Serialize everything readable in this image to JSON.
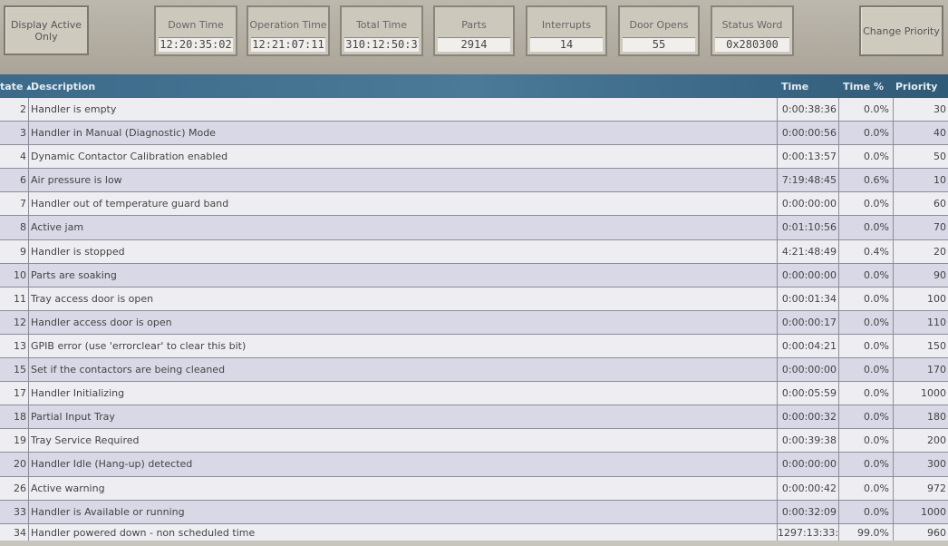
{
  "toolbar": {
    "display_active": "Display Active Only",
    "change_priority": "Change Priority"
  },
  "stats": [
    {
      "label": "Down Time",
      "value": "12:20:35:02"
    },
    {
      "label": "Operation Time",
      "value": "12:21:07:11"
    },
    {
      "label": "Total Time",
      "value": "310:12:50:3"
    },
    {
      "label": "Parts",
      "value": "2914"
    },
    {
      "label": "Interrupts",
      "value": "14"
    },
    {
      "label": "Door Opens",
      "value": "55"
    },
    {
      "label": "Status Word",
      "value": "0x280300"
    }
  ],
  "table": {
    "headers": {
      "state": "tate ▴",
      "description": "Description",
      "time": "Time",
      "time_pct": "Time %",
      "priority": "Priority"
    },
    "rows": [
      {
        "state": "2",
        "description": "Handler is empty",
        "time": "0:00:38:36",
        "pct": "0.0%",
        "priority": "30"
      },
      {
        "state": "3",
        "description": "Handler in Manual (Diagnostic) Mode",
        "time": "0:00:00:56",
        "pct": "0.0%",
        "priority": "40"
      },
      {
        "state": "4",
        "description": "Dynamic Contactor Calibration enabled",
        "time": "0:00:13:57",
        "pct": "0.0%",
        "priority": "50"
      },
      {
        "state": "6",
        "description": "Air pressure is low",
        "time": "7:19:48:45",
        "pct": "0.6%",
        "priority": "10"
      },
      {
        "state": "7",
        "description": "Handler out of temperature guard band",
        "time": "0:00:00:00",
        "pct": "0.0%",
        "priority": "60"
      },
      {
        "state": "8",
        "description": "Active jam",
        "time": "0:01:10:56",
        "pct": "0.0%",
        "priority": "70"
      },
      {
        "state": "9",
        "description": "Handler is stopped",
        "time": "4:21:48:49",
        "pct": "0.4%",
        "priority": "20"
      },
      {
        "state": "10",
        "description": "Parts are soaking",
        "time": "0:00:00:00",
        "pct": "0.0%",
        "priority": "90"
      },
      {
        "state": "11",
        "description": "Tray access door is open",
        "time": "0:00:01:34",
        "pct": "0.0%",
        "priority": "100"
      },
      {
        "state": "12",
        "description": "Handler access door is open",
        "time": "0:00:00:17",
        "pct": "0.0%",
        "priority": "110"
      },
      {
        "state": "13",
        "description": "GPIB error (use 'errorclear' to clear this bit)",
        "time": "0:00:04:21",
        "pct": "0.0%",
        "priority": "150"
      },
      {
        "state": "15",
        "description": "Set if the contactors are being cleaned",
        "time": "0:00:00:00",
        "pct": "0.0%",
        "priority": "170"
      },
      {
        "state": "17",
        "description": "Handler Initializing",
        "time": "0:00:05:59",
        "pct": "0.0%",
        "priority": "1000"
      },
      {
        "state": "18",
        "description": "Partial Input Tray",
        "time": "0:00:00:32",
        "pct": "0.0%",
        "priority": "180"
      },
      {
        "state": "19",
        "description": "Tray Service Required",
        "time": "0:00:39:38",
        "pct": "0.0%",
        "priority": "200"
      },
      {
        "state": "20",
        "description": "Handler Idle (Hang-up) detected",
        "time": "0:00:00:00",
        "pct": "0.0%",
        "priority": "300"
      },
      {
        "state": "26",
        "description": "Active warning",
        "time": "0:00:00:42",
        "pct": "0.0%",
        "priority": "972"
      },
      {
        "state": "33",
        "description": "Handler is Available or running",
        "time": "0:00:32:09",
        "pct": "0.0%",
        "priority": "1000"
      },
      {
        "state": "34",
        "description": "Handler powered down - non scheduled time",
        "time": "1297:13:33:",
        "pct": "99.0%",
        "priority": "960"
      }
    ]
  }
}
